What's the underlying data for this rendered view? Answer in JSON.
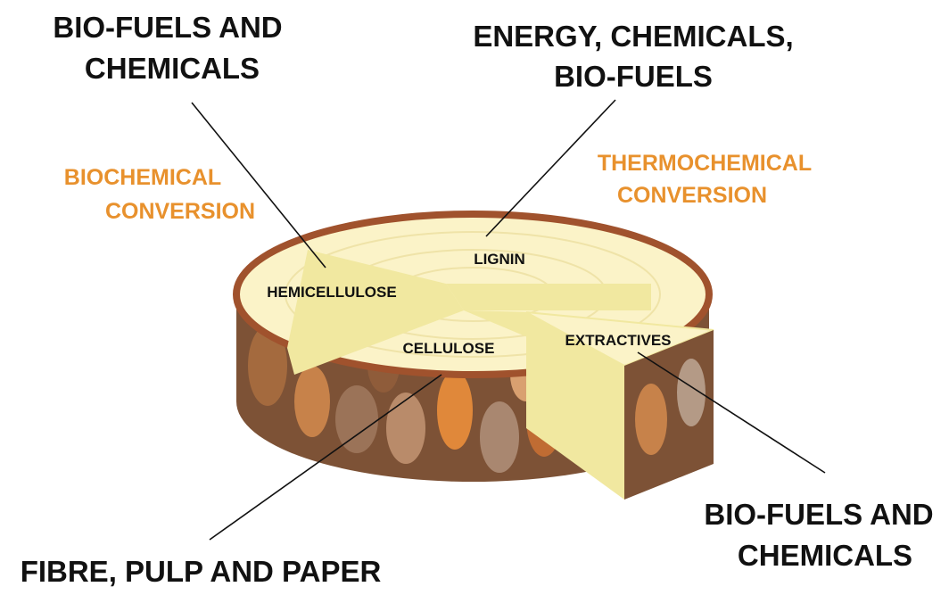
{
  "outputs": [
    {
      "lines": [
        "BIO-FUELS AND",
        "CHEMICALS"
      ]
    },
    {
      "lines": [
        "ENERGY, CHEMICALS,",
        "BIO-FUELS"
      ]
    },
    {
      "lines": [
        "FIBRE, PULP AND PAPER"
      ]
    },
    {
      "lines": [
        "BIO-FUELS AND",
        "CHEMICALS"
      ]
    }
  ],
  "conversions": [
    {
      "lines": [
        "BIOCHEMICAL",
        "CONVERSION"
      ]
    },
    {
      "lines": [
        "THERMOCHEMICAL",
        "CONVERSION"
      ]
    }
  ],
  "components": [
    "HEMICELLULOSE",
    "LIGNIN",
    "CELLULOSE",
    "EXTRACTIVES"
  ]
}
